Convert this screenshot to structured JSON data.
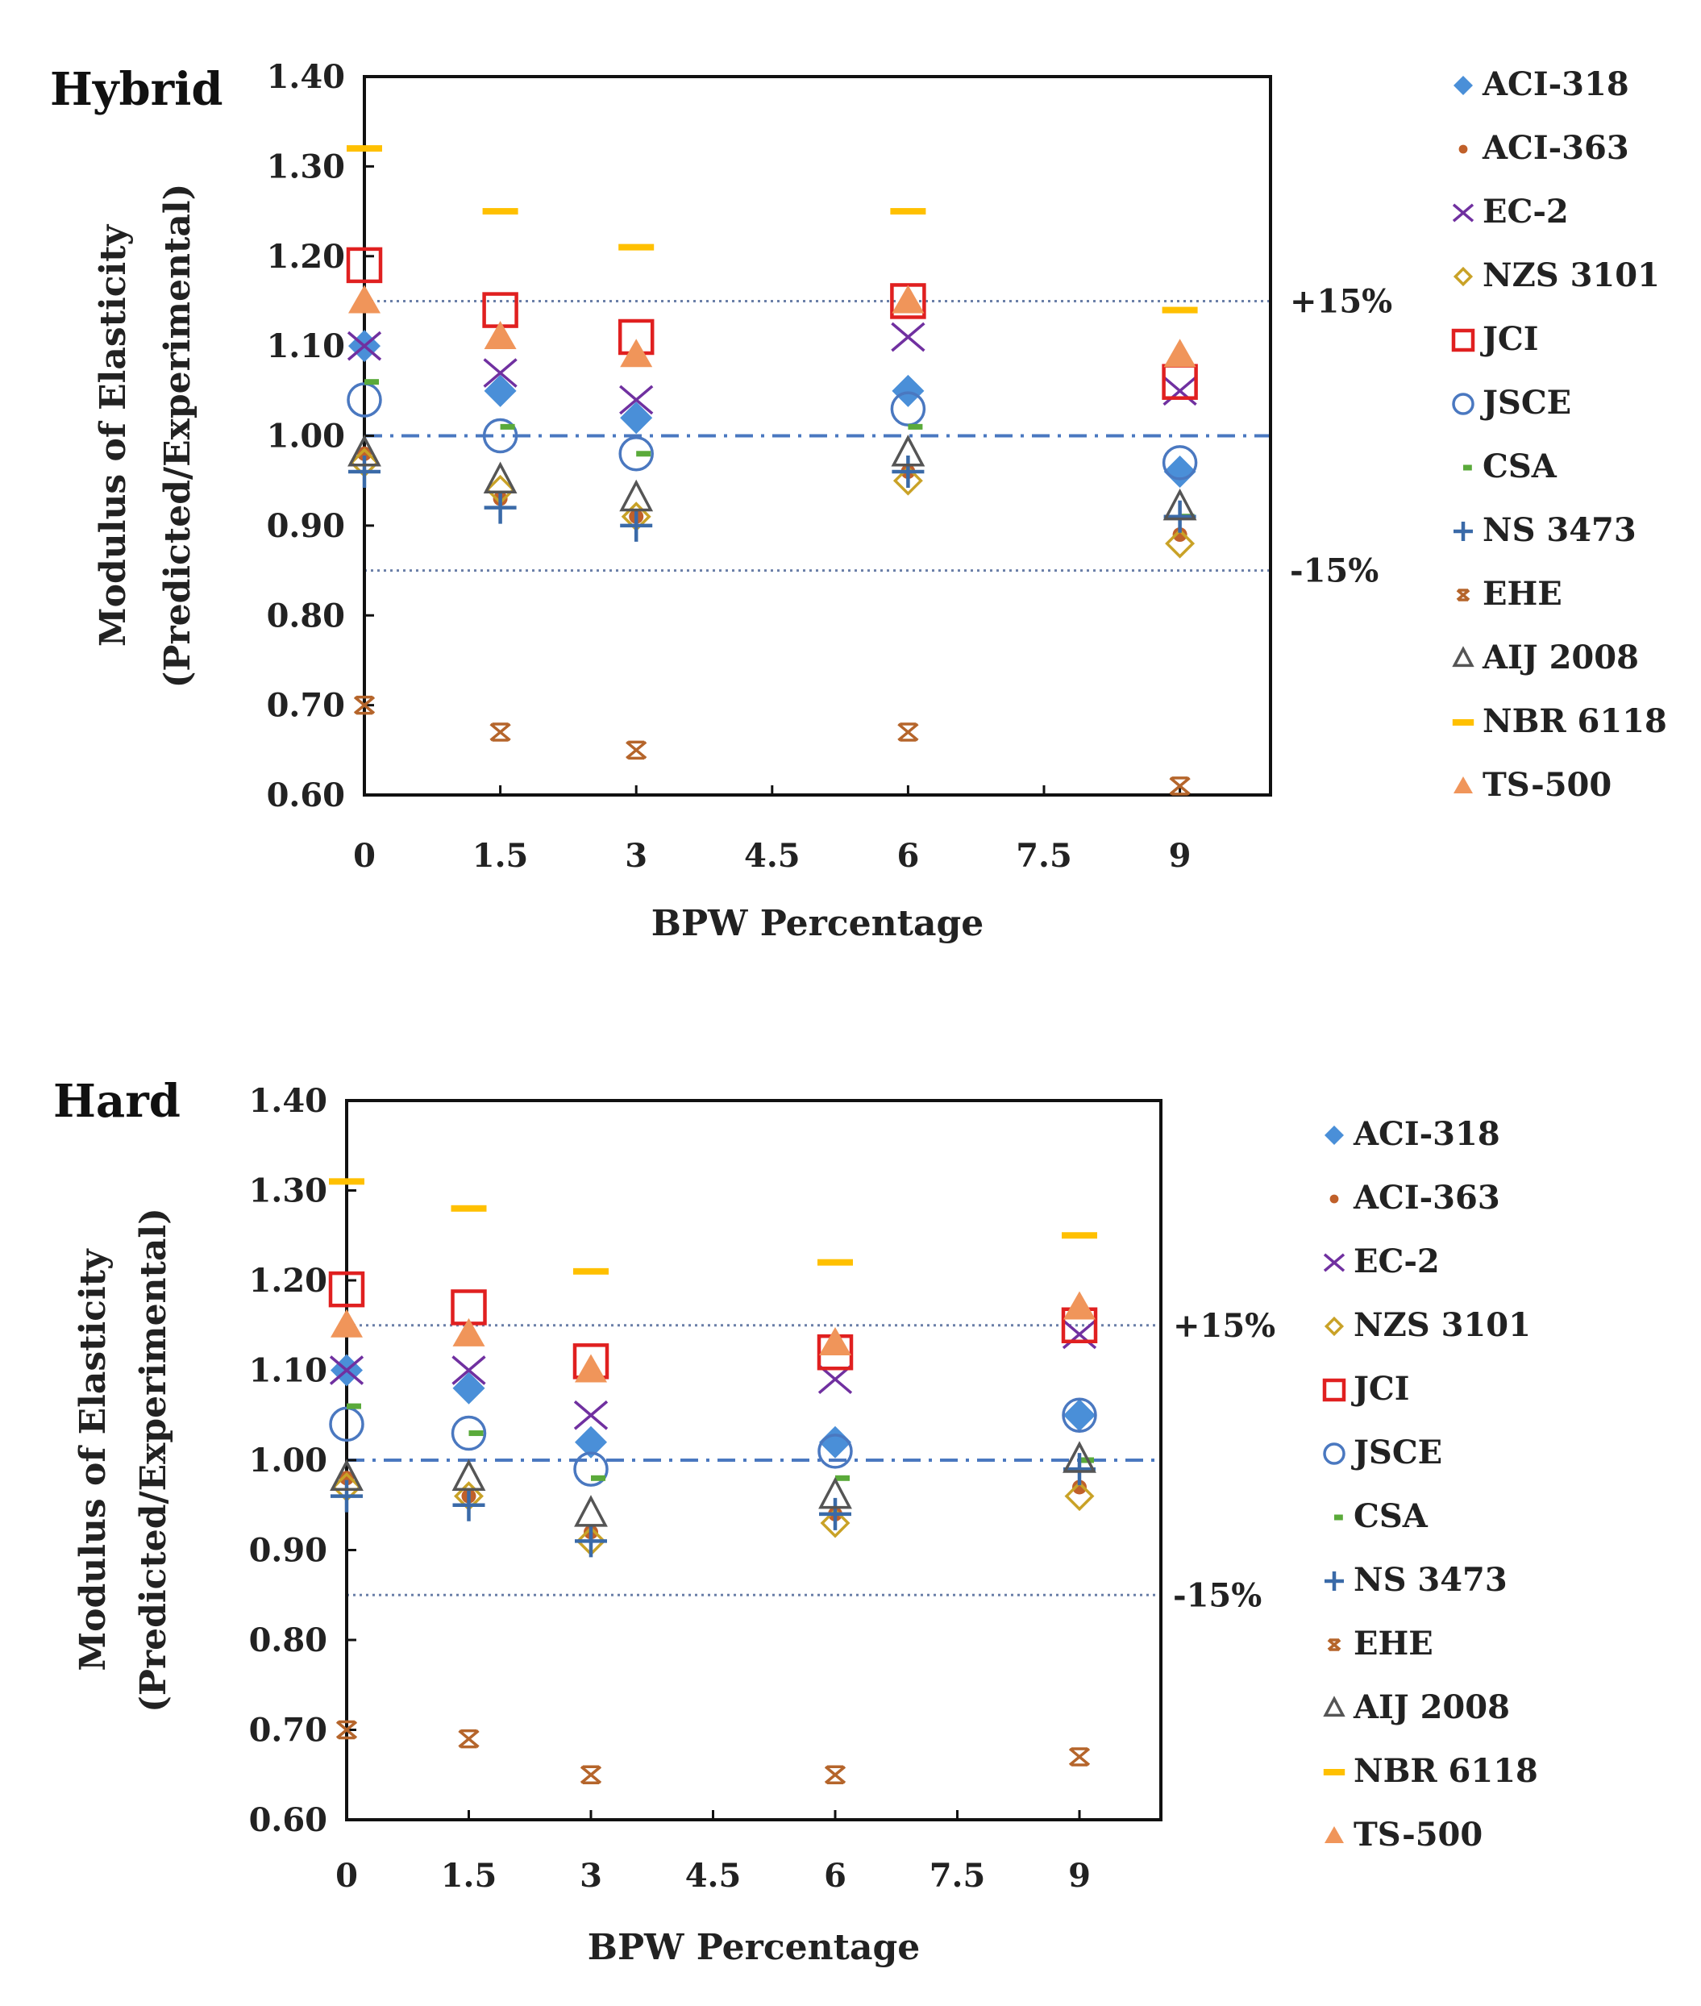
{
  "chart_data": [
    {
      "type": "scatter",
      "title": "Hybrid",
      "xlabel": "BPW Percentage",
      "ylabel": "Modulus of Elasticity (Predicted/Experimental)",
      "ylabel_lines": [
        "Modulus of Elasticity",
        "(Predicted/Experimental)"
      ],
      "xlim": [
        0,
        10
      ],
      "ylim": [
        0.6,
        1.4
      ],
      "xticks": [
        "0",
        "1.5",
        "3",
        "4.5",
        "6",
        "7.5",
        "9"
      ],
      "xtick_values": [
        0,
        1.5,
        3,
        4.5,
        6,
        7.5,
        9
      ],
      "yticks": [
        "0.60",
        "0.70",
        "0.80",
        "0.90",
        "1.00",
        "1.10",
        "1.20",
        "1.30",
        "1.40"
      ],
      "ytick_values": [
        0.6,
        0.7,
        0.8,
        0.9,
        1.0,
        1.1,
        1.2,
        1.3,
        1.4
      ],
      "reference_lines": [
        {
          "y": 1.15,
          "label": "+15%",
          "style": "dotted"
        },
        {
          "y": 1.0,
          "label": "",
          "style": "dashdot"
        },
        {
          "y": 0.85,
          "label": "-15%",
          "style": "dotted"
        }
      ],
      "legend_position": "right",
      "x": [
        0,
        1.5,
        3,
        6,
        9
      ],
      "series": [
        {
          "name": "ACI-318",
          "values": [
            1.1,
            1.05,
            1.02,
            1.05,
            0.96
          ]
        },
        {
          "name": "ACI-363",
          "values": [
            0.98,
            0.93,
            0.91,
            0.96,
            0.89
          ]
        },
        {
          "name": "EC-2",
          "values": [
            1.1,
            1.07,
            1.04,
            1.11,
            1.05
          ]
        },
        {
          "name": "NZS 3101",
          "values": [
            0.97,
            0.94,
            0.91,
            0.95,
            0.88
          ]
        },
        {
          "name": "JCI",
          "values": [
            1.19,
            1.14,
            1.11,
            1.15,
            1.06
          ]
        },
        {
          "name": "JSCE",
          "values": [
            1.04,
            1.0,
            0.98,
            1.03,
            0.97
          ]
        },
        {
          "name": "CSA",
          "values": [
            1.06,
            1.01,
            0.98,
            1.01,
            0.91
          ]
        },
        {
          "name": "NS 3473",
          "values": [
            0.96,
            0.92,
            0.9,
            0.96,
            0.91
          ]
        },
        {
          "name": "EHE",
          "values": [
            0.7,
            0.67,
            0.65,
            0.67,
            0.61
          ]
        },
        {
          "name": "AIJ 2008",
          "values": [
            0.98,
            0.95,
            0.93,
            0.98,
            0.92
          ]
        },
        {
          "name": "NBR 6118",
          "values": [
            1.32,
            1.25,
            1.21,
            1.25,
            1.14
          ]
        },
        {
          "name": "TS-500",
          "values": [
            1.15,
            1.11,
            1.09,
            1.15,
            1.09
          ]
        }
      ]
    },
    {
      "type": "scatter",
      "title": "Hard",
      "xlabel": "BPW Percentage",
      "ylabel": "Modulus of Elasticity (Predicted/Experimental)",
      "ylabel_lines": [
        "Modulus of Elasticity",
        "(Predicted/Experimental)"
      ],
      "xlim": [
        0,
        10
      ],
      "ylim": [
        0.6,
        1.4
      ],
      "xticks": [
        "0",
        "1.5",
        "3",
        "4.5",
        "6",
        "7.5",
        "9"
      ],
      "xtick_values": [
        0,
        1.5,
        3,
        4.5,
        6,
        7.5,
        9
      ],
      "yticks": [
        "0.60",
        "0.70",
        "0.80",
        "0.90",
        "1.00",
        "1.10",
        "1.20",
        "1.30",
        "1.40"
      ],
      "ytick_values": [
        0.6,
        0.7,
        0.8,
        0.9,
        1.0,
        1.1,
        1.2,
        1.3,
        1.4
      ],
      "reference_lines": [
        {
          "y": 1.15,
          "label": "+15%",
          "style": "dotted"
        },
        {
          "y": 1.0,
          "label": "",
          "style": "dashdot"
        },
        {
          "y": 0.85,
          "label": "-15%",
          "style": "dotted"
        }
      ],
      "legend_position": "right",
      "x": [
        0,
        1.5,
        3,
        6,
        9
      ],
      "series": [
        {
          "name": "ACI-318",
          "values": [
            1.1,
            1.08,
            1.02,
            1.02,
            1.05
          ]
        },
        {
          "name": "ACI-363",
          "values": [
            0.98,
            0.96,
            0.92,
            0.94,
            0.97
          ]
        },
        {
          "name": "EC-2",
          "values": [
            1.1,
            1.1,
            1.05,
            1.09,
            1.14
          ]
        },
        {
          "name": "NZS 3101",
          "values": [
            0.97,
            0.96,
            0.91,
            0.93,
            0.96
          ]
        },
        {
          "name": "JCI",
          "values": [
            1.19,
            1.17,
            1.11,
            1.12,
            1.15
          ]
        },
        {
          "name": "JSCE",
          "values": [
            1.04,
            1.03,
            0.99,
            1.01,
            1.05
          ]
        },
        {
          "name": "CSA",
          "values": [
            1.06,
            1.03,
            0.98,
            0.98,
            1.0
          ]
        },
        {
          "name": "NS 3473",
          "values": [
            0.96,
            0.95,
            0.91,
            0.94,
            0.99
          ]
        },
        {
          "name": "EHE",
          "values": [
            0.7,
            0.69,
            0.65,
            0.65,
            0.67
          ]
        },
        {
          "name": "AIJ 2008",
          "values": [
            0.98,
            0.98,
            0.94,
            0.96,
            1.0
          ]
        },
        {
          "name": "NBR 6118",
          "values": [
            1.31,
            1.28,
            1.21,
            1.22,
            1.25
          ]
        },
        {
          "name": "TS-500",
          "values": [
            1.15,
            1.14,
            1.1,
            1.13,
            1.17
          ]
        }
      ]
    }
  ],
  "series_style": {
    "ACI-318": {
      "marker": "diamond-filled",
      "color": "#4a8fd8"
    },
    "ACI-363": {
      "marker": "circle-small-filled",
      "color": "#c0602a"
    },
    "EC-2": {
      "marker": "x",
      "color": "#7030a0"
    },
    "NZS 3101": {
      "marker": "diamond-open",
      "color": "#c9a227"
    },
    "JCI": {
      "marker": "square-open",
      "color": "#e02020"
    },
    "JSCE": {
      "marker": "circle-open",
      "color": "#4a78c0"
    },
    "CSA": {
      "marker": "dash",
      "color": "#5aaa3a"
    },
    "NS 3473": {
      "marker": "plus",
      "color": "#3a6aa8"
    },
    "EHE": {
      "marker": "asterisk",
      "color": "#b5652b"
    },
    "AIJ 2008": {
      "marker": "triangle-open",
      "color": "#555555"
    },
    "NBR 6118": {
      "marker": "dash-long",
      "color": "#ffc000"
    },
    "TS-500": {
      "marker": "triangle-filled",
      "color": "#f0955a"
    }
  }
}
